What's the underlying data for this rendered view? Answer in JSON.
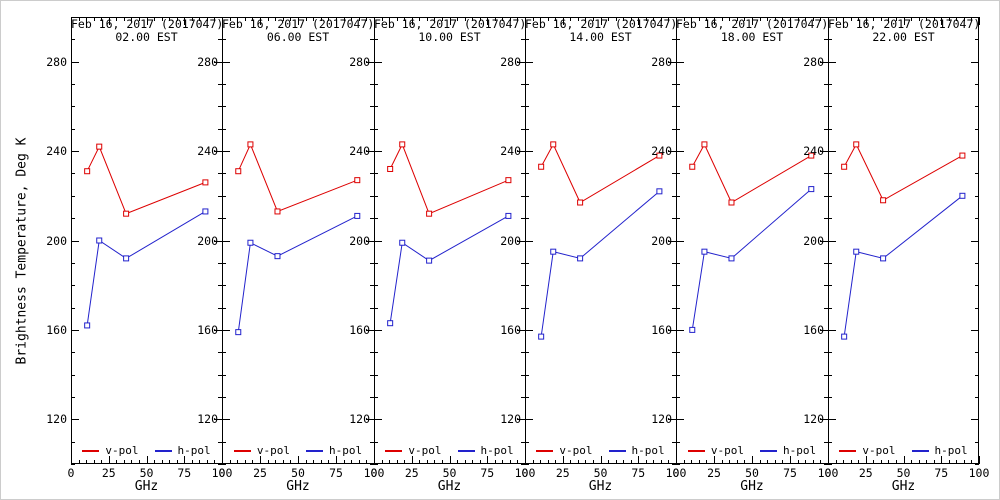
{
  "figure": {
    "y_axis_title": "Brightness Temperature, Deg K",
    "x_axis_title": "GHz"
  },
  "legend": {
    "v_label": "v-pol",
    "h_label": "h-pol"
  },
  "colors": {
    "v_pol": "#dd0000",
    "h_pol": "#2222cc",
    "frame": "#000000"
  },
  "chart_data": {
    "type": "line",
    "x": [
      10.7,
      18.7,
      36.5,
      89
    ],
    "xlabel": "GHz",
    "ylabel": "Brightness Temperature, Deg K",
    "xlim": [
      0,
      100
    ],
    "ylim": [
      100,
      300
    ],
    "x_ticks": [
      0,
      25,
      50,
      75,
      100
    ],
    "y_ticks": [
      120,
      160,
      200,
      240,
      280
    ],
    "x_minor_step": 5,
    "y_minor_step": 10,
    "grid": false,
    "legend_position": "bottom-inside",
    "marker": "open-square",
    "panels": [
      {
        "title": "Feb 16, 2017 (2017047)",
        "subtitle": "02.00 EST",
        "series": [
          {
            "name": "v-pol",
            "values": [
              231,
              242,
              212,
              226
            ]
          },
          {
            "name": "h-pol",
            "values": [
              162,
              200,
              192,
              213
            ]
          }
        ]
      },
      {
        "title": "Feb 16, 2017 (2017047)",
        "subtitle": "06.00 EST",
        "series": [
          {
            "name": "v-pol",
            "values": [
              231,
              243,
              213,
              227
            ]
          },
          {
            "name": "h-pol",
            "values": [
              159,
              199,
              193,
              211
            ]
          }
        ]
      },
      {
        "title": "Feb 16, 2017 (2017047)",
        "subtitle": "10.00 EST",
        "series": [
          {
            "name": "v-pol",
            "values": [
              232,
              243,
              212,
              227
            ]
          },
          {
            "name": "h-pol",
            "values": [
              163,
              199,
              191,
              211
            ]
          }
        ]
      },
      {
        "title": "Feb 16, 2017 (2017047)",
        "subtitle": "14.00 EST",
        "series": [
          {
            "name": "v-pol",
            "values": [
              233,
              243,
              217,
              238
            ]
          },
          {
            "name": "h-pol",
            "values": [
              157,
              195,
              192,
              222
            ]
          }
        ]
      },
      {
        "title": "Feb 16, 2017 (2017047)",
        "subtitle": "18.00 EST",
        "series": [
          {
            "name": "v-pol",
            "values": [
              233,
              243,
              217,
              238
            ]
          },
          {
            "name": "h-pol",
            "values": [
              160,
              195,
              192,
              223
            ]
          }
        ]
      },
      {
        "title": "Feb 16, 2017 (2017047)",
        "subtitle": "22.00 EST",
        "series": [
          {
            "name": "v-pol",
            "values": [
              233,
              243,
              218,
              238
            ]
          },
          {
            "name": "h-pol",
            "values": [
              157,
              195,
              192,
              220
            ]
          }
        ]
      }
    ]
  }
}
